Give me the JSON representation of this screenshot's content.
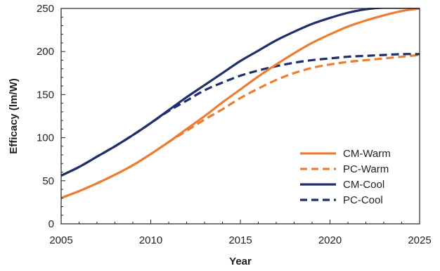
{
  "chart_data": {
    "type": "line",
    "xlabel": "Year",
    "ylabel": "Efficacy (lm/W)",
    "xlim": [
      2005,
      2025
    ],
    "ylim": [
      0,
      250
    ],
    "xticks": [
      2005,
      2010,
      2015,
      2020,
      2025
    ],
    "yticks": [
      0,
      50,
      100,
      150,
      200,
      250
    ],
    "grid": false,
    "legend_position": "bottom-right",
    "series": [
      {
        "name": "CM-Warm",
        "color": "#ED7D31",
        "dash": "solid",
        "x": [
          2005,
          2006,
          2007,
          2008,
          2009,
          2010,
          2011,
          2012,
          2013,
          2014,
          2015,
          2016,
          2017,
          2018,
          2019,
          2020,
          2021,
          2022,
          2023,
          2024,
          2025
        ],
        "y": [
          30,
          38,
          47,
          57,
          68,
          81,
          95,
          110,
          125,
          141,
          156,
          171,
          185,
          198,
          210,
          220,
          229,
          236,
          242,
          247,
          250
        ]
      },
      {
        "name": "PC-Warm",
        "color": "#ED7D31",
        "dash": "dashed",
        "x": [
          2005,
          2006,
          2007,
          2008,
          2009,
          2010,
          2011,
          2012,
          2013,
          2014,
          2015,
          2016,
          2017,
          2018,
          2019,
          2020,
          2021,
          2022,
          2023,
          2024,
          2025
        ],
        "y": [
          30,
          38,
          47,
          57,
          68,
          81,
          95,
          108,
          121,
          133,
          146,
          157,
          167,
          175,
          181,
          185,
          188,
          190,
          192,
          194,
          196
        ]
      },
      {
        "name": "CM-Cool",
        "color": "#1F2F6B",
        "dash": "solid",
        "x": [
          2005,
          2006,
          2007,
          2008,
          2009,
          2010,
          2011,
          2012,
          2013,
          2014,
          2015,
          2016,
          2017,
          2018,
          2019,
          2020,
          2021,
          2022,
          2023,
          2024,
          2025
        ],
        "y": [
          56,
          66,
          78,
          90,
          103,
          117,
          132,
          147,
          161,
          175,
          189,
          201,
          213,
          223,
          232,
          239,
          245,
          249,
          251,
          251,
          251
        ]
      },
      {
        "name": "PC-Cool",
        "color": "#1F2F6B",
        "dash": "dashed",
        "x": [
          2005,
          2006,
          2007,
          2008,
          2009,
          2010,
          2011,
          2012,
          2013,
          2014,
          2015,
          2016,
          2017,
          2018,
          2019,
          2020,
          2021,
          2022,
          2023,
          2024,
          2025
        ],
        "y": [
          56,
          66,
          78,
          90,
          103,
          117,
          131,
          143,
          155,
          164,
          172,
          178,
          183,
          187,
          190,
          192,
          194,
          195,
          196,
          197,
          197
        ]
      }
    ]
  }
}
